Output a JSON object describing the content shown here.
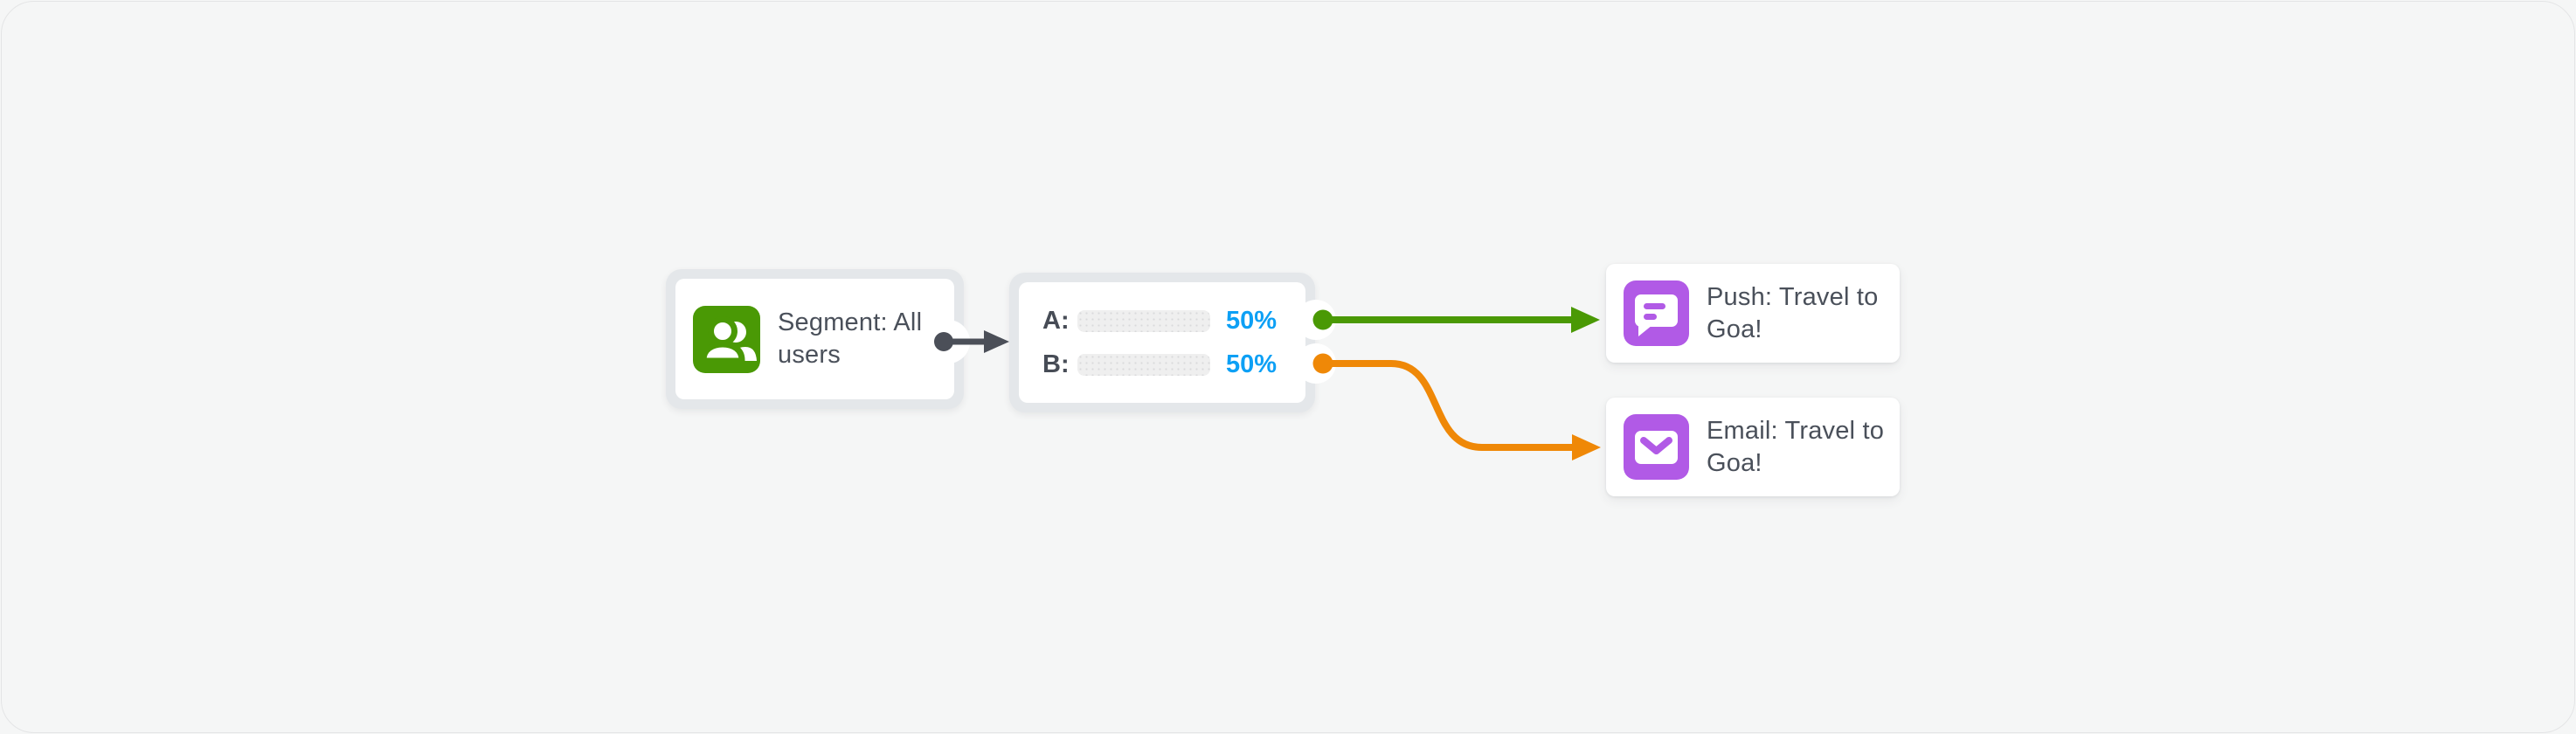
{
  "canvas": {
    "background": "#f5f6f6",
    "description": "campaign-flow-diagram"
  },
  "colors": {
    "node_ring": "#e4e7ea",
    "text": "#4a505a",
    "segment_green": "#4a9905",
    "bar_blue": "#0da0f5",
    "branch_a_green": "#4a9905",
    "branch_b_orange": "#ef8807",
    "connector_gray": "#4b4f58",
    "channel_purple": "#b15ae6"
  },
  "nodes": {
    "segment": {
      "label": "Segment: All users",
      "icon": "users-icon"
    },
    "ab_split": {
      "rows": [
        {
          "label": "A:",
          "percent_text": "50%",
          "percent_value": 50
        },
        {
          "label": "B:",
          "percent_text": "50%",
          "percent_value": 50
        }
      ]
    },
    "push": {
      "label": "Push: Travel to Goa!",
      "icon": "push-message-icon"
    },
    "email": {
      "label": "Email: Travel to Goa!",
      "icon": "email-icon"
    }
  },
  "connectors": [
    {
      "name": "segment-to-split",
      "color": "#4b4f58",
      "style": "straight-arrow"
    },
    {
      "name": "branch-a-to-push",
      "color": "#4a9905",
      "style": "straight-arrow"
    },
    {
      "name": "branch-b-to-email",
      "color": "#ef8807",
      "style": "s-curve-arrow"
    }
  ]
}
